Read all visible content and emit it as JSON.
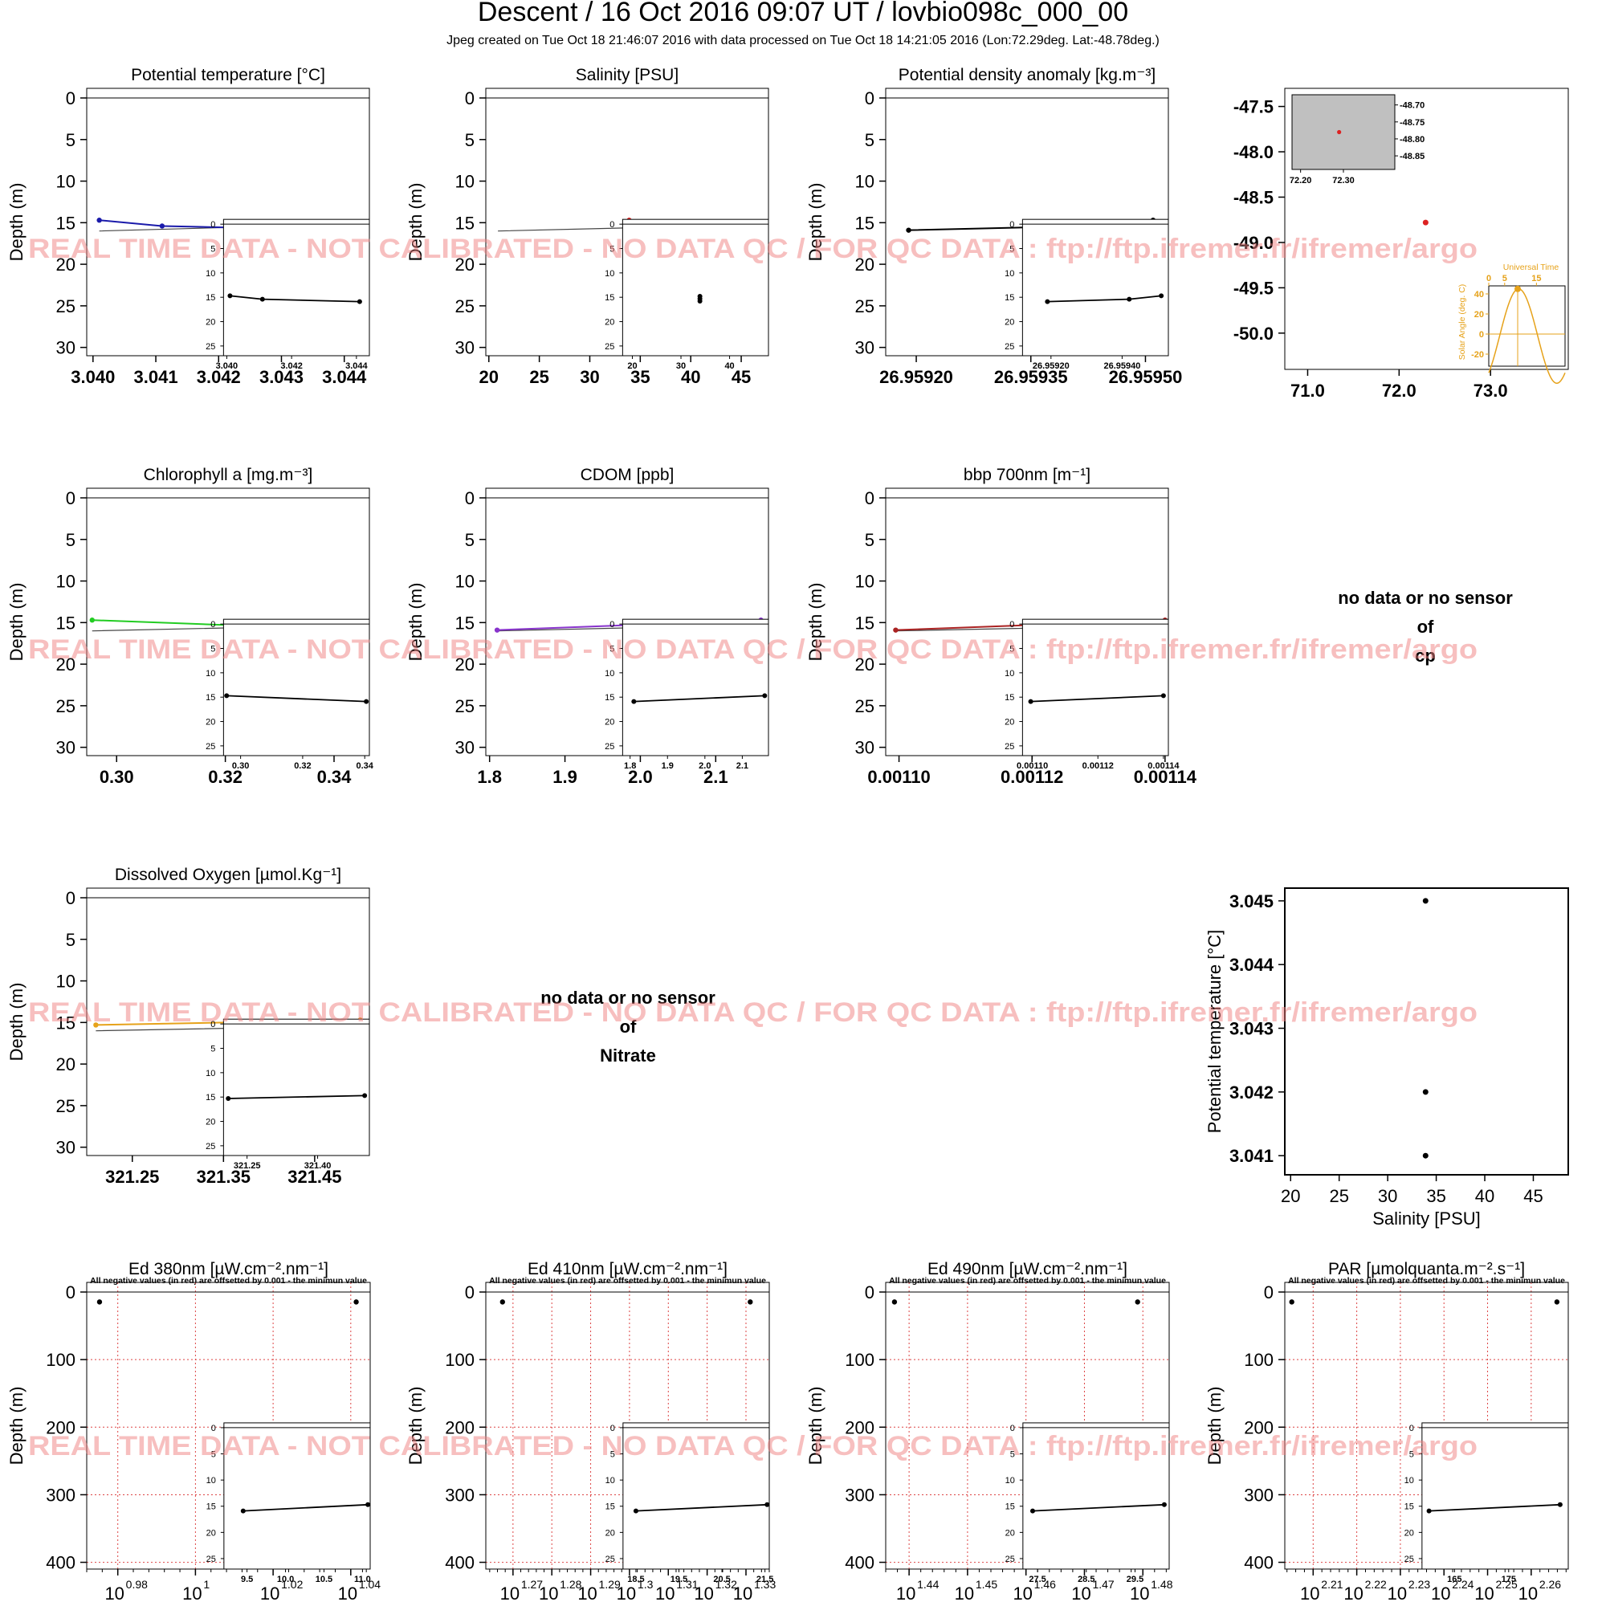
{
  "header": {
    "title": "Descent / 16 Oct 2016 09:07 UT /  lovbio098c_000_00",
    "subtitle": "Jpeg created on Tue Oct 18 21:46:07 2016 with data processed on Tue Oct 18 14:21:05 2016 (Lon:72.29deg. Lat:-48.78deg.)"
  },
  "watermark": "REAL TIME DATA - NOT CALIBRATED - NO DATA QC  /  FOR QC DATA : ftp://ftp.ifremer.fr/ifremer/argo",
  "no_data_messages": {
    "cp": [
      "no data or no sensor",
      "of",
      "cp"
    ],
    "nitrate": [
      "no data or no sensor",
      "of",
      "Nitrate"
    ]
  },
  "chart_data": [
    {
      "id": "temp",
      "type": "line",
      "title": "Potential temperature [°C]",
      "ylabel": "Depth (m)",
      "color": "#1a1aaa",
      "xlim": [
        3.0399,
        3.0444
      ],
      "ylim": [
        0,
        31
      ],
      "y_inverted": true,
      "xticks": [
        3.04,
        3.041,
        3.042,
        3.043,
        3.044
      ],
      "xtick_labels": [
        "3.040",
        "3.041",
        "3.042",
        "3.043",
        "3.044"
      ],
      "yticks": [
        0,
        5,
        10,
        15,
        20,
        25,
        30
      ],
      "points": [
        [
          3.0401,
          14.7
        ],
        [
          3.0411,
          15.4
        ],
        [
          3.0441,
          15.9
        ]
      ],
      "density_profile": [
        [
          3.0401,
          16.0
        ],
        [
          3.0425,
          15.5
        ],
        [
          3.0441,
          14.8
        ]
      ],
      "inset": {
        "xlim": [
          3.0399,
          3.0444
        ],
        "xticks": [
          3.04,
          3.042,
          3.044
        ],
        "xtick_labels": [
          "3.040",
          "3.042",
          "3.044"
        ],
        "yticks": [
          0,
          5,
          10,
          15,
          20,
          25
        ]
      }
    },
    {
      "id": "sal",
      "type": "scatter",
      "title": "Salinity [PSU]",
      "ylabel": "Depth (m)",
      "color": "#dd2222",
      "xlim": [
        19.7,
        47.7
      ],
      "ylim": [
        0,
        31
      ],
      "y_inverted": true,
      "xticks": [
        20,
        25,
        30,
        35,
        40,
        45
      ],
      "xtick_labels": [
        "20",
        "25",
        "30",
        "35",
        "40",
        "45"
      ],
      "yticks": [
        0,
        5,
        10,
        15,
        20,
        25,
        30
      ],
      "points": [
        [
          33.9,
          14.7
        ],
        [
          33.9,
          15.4
        ],
        [
          33.9,
          15.9
        ]
      ],
      "density_profile": [
        [
          20.9,
          16.0
        ],
        [
          38.0,
          15.5
        ],
        [
          46.8,
          14.8
        ]
      ],
      "inset": {
        "xlim": [
          18.0,
          48.0
        ],
        "xticks": [
          20,
          30,
          40
        ],
        "xtick_labels": [
          "20",
          "30",
          "40"
        ],
        "yticks": [
          0,
          5,
          10,
          15,
          20,
          25
        ]
      }
    },
    {
      "id": "dens",
      "type": "line",
      "title": "Potential density anomaly [kg.m⁻³]",
      "ylabel": "Depth (m)",
      "color": "#000000",
      "xlim": [
        26.95916,
        26.95953
      ],
      "ylim": [
        0,
        31
      ],
      "y_inverted": true,
      "xticks": [
        26.9592,
        26.95935,
        26.9595
      ],
      "xtick_labels": [
        "26.95920",
        "26.95935",
        "26.95950"
      ],
      "yticks": [
        0,
        5,
        10,
        15,
        20,
        25,
        30
      ],
      "points": [
        [
          26.95919,
          15.9
        ],
        [
          26.95942,
          15.4
        ],
        [
          26.95951,
          14.7
        ]
      ],
      "inset": {
        "xlim": [
          26.95912,
          26.95953
        ],
        "xticks": [
          26.9592,
          26.9594
        ],
        "xtick_labels": [
          "26.95920",
          "26.95940"
        ],
        "yticks": [
          0,
          5,
          10,
          15,
          20,
          25
        ]
      }
    },
    {
      "id": "chla",
      "type": "line",
      "title": "Chlorophyll a [mg.m⁻³]",
      "ylabel": "Depth (m)",
      "color": "#22cc22",
      "xlim": [
        0.2945,
        0.3465
      ],
      "ylim": [
        0,
        31
      ],
      "y_inverted": true,
      "xticks": [
        0.3,
        0.32,
        0.34
      ],
      "xtick_labels": [
        "0.30",
        "0.32",
        "0.34"
      ],
      "yticks": [
        0,
        5,
        10,
        15,
        20,
        25,
        30
      ],
      "points": [
        [
          0.2955,
          14.7
        ],
        [
          0.3455,
          15.9
        ]
      ],
      "density_profile": [
        [
          0.2955,
          16.0
        ],
        [
          0.33,
          15.5
        ],
        [
          0.3455,
          14.8
        ]
      ],
      "inset": {
        "xlim": [
          0.2945,
          0.3415
        ],
        "xticks": [
          0.3,
          0.32,
          0.34
        ],
        "xtick_labels": [
          "0.30",
          "0.32",
          "0.34"
        ],
        "yticks": [
          0,
          5,
          10,
          15,
          20,
          25
        ]
      }
    },
    {
      "id": "cdom",
      "type": "line",
      "title": "CDOM [ppb]",
      "ylabel": "Depth (m)",
      "color": "#8833cc",
      "xlim": [
        1.795,
        2.17
      ],
      "ylim": [
        0,
        31
      ],
      "y_inverted": true,
      "xticks": [
        1.8,
        1.9,
        2.0,
        2.1
      ],
      "xtick_labels": [
        "1.8",
        "1.9",
        "2.0",
        "2.1"
      ],
      "yticks": [
        0,
        5,
        10,
        15,
        20,
        25,
        30
      ],
      "points": [
        [
          1.81,
          15.9
        ],
        [
          2.16,
          14.7
        ]
      ],
      "density_profile": [
        [
          1.81,
          16.0
        ],
        [
          2.05,
          15.5
        ],
        [
          2.16,
          14.8
        ]
      ],
      "inset": {
        "xlim": [
          1.78,
          2.17
        ],
        "xticks": [
          1.8,
          1.9,
          2.0,
          2.1
        ],
        "xtick_labels": [
          "1.8",
          "1.9",
          "2.0",
          "2.1"
        ],
        "yticks": [
          0,
          5,
          10,
          15,
          20,
          25
        ]
      }
    },
    {
      "id": "bbp",
      "type": "line",
      "title": "bbp 700nm [m⁻¹]",
      "ylabel": "Depth (m)",
      "color": "#aa2222",
      "xlim": [
        0.001098,
        0.0011405
      ],
      "ylim": [
        0,
        31
      ],
      "y_inverted": true,
      "xticks": [
        0.0011,
        0.00112,
        0.00114
      ],
      "xtick_labels": [
        "0.00110",
        "0.00112",
        "0.00114"
      ],
      "yticks": [
        0,
        5,
        10,
        15,
        20,
        25,
        30
      ],
      "points": [
        [
          0.0010995,
          15.9
        ],
        [
          0.00114,
          14.7
        ]
      ],
      "density_profile": [
        [
          0.0010995,
          16.0
        ],
        [
          0.00113,
          15.5
        ],
        [
          0.00114,
          14.8
        ]
      ],
      "inset": {
        "xlim": [
          0.001097,
          0.0011415
        ],
        "xticks": [
          0.0011,
          0.00112,
          0.00114
        ],
        "xtick_labels": [
          "0.00110",
          "0.00112",
          "0.00114"
        ],
        "yticks": [
          0,
          5,
          10,
          15,
          20,
          25
        ]
      }
    },
    {
      "id": "doxy",
      "type": "line",
      "title": "Dissolved Oxygen [µmol.Kg⁻¹]",
      "ylabel": "Depth (m)",
      "color": "#e6a21a",
      "xlim": [
        321.2,
        321.51
      ],
      "ylim": [
        0,
        31
      ],
      "y_inverted": true,
      "xticks": [
        321.25,
        321.35,
        321.45
      ],
      "xtick_labels": [
        "321.25",
        "321.35",
        "321.45"
      ],
      "yticks": [
        0,
        5,
        10,
        15,
        20,
        25,
        30
      ],
      "points": [
        [
          321.21,
          15.3
        ],
        [
          321.5,
          14.7
        ]
      ],
      "density_profile": [
        [
          321.21,
          16.0
        ],
        [
          321.45,
          15.5
        ],
        [
          321.5,
          14.8
        ]
      ],
      "inset": {
        "xlim": [
          321.2,
          321.51
        ],
        "xticks": [
          321.25,
          321.4
        ],
        "xtick_labels": [
          "321.25",
          "321.40"
        ],
        "yticks": [
          0,
          5,
          10,
          15,
          20,
          25
        ]
      }
    },
    {
      "id": "ed380",
      "type": "scatter",
      "title": "Ed 380nm [µW.cm⁻².nm⁻¹]",
      "subtitle": "All negative values (in red) are offsetted by 0.001 - the minimun value",
      "ylabel": "Depth (m)",
      "color": "#000000",
      "x_scale": "log10",
      "xlim": [
        0.972,
        1.045
      ],
      "ylim": [
        0,
        410
      ],
      "y_inverted": true,
      "grid": true,
      "xticks": [
        0.98,
        1.0,
        1.02,
        1.04
      ],
      "xtick_labels": [
        "0.98",
        "1",
        "1.02",
        "1.04"
      ],
      "xtick_base": "10",
      "yticks": [
        0,
        100,
        200,
        300,
        400
      ],
      "points": [
        [
          0.9753,
          14.7
        ],
        [
          1.0414,
          14.7
        ]
      ],
      "inset": {
        "xlim": [
          9.2,
          11.1
        ],
        "xticks": [
          9.5,
          10.0,
          10.5,
          11.0
        ],
        "xtick_labels": [
          "9.5",
          "10.0",
          "10.5",
          "11.0"
        ],
        "yticks": [
          0,
          5,
          10,
          15,
          20,
          25
        ],
        "points": [
          [
            9.45,
            15.9
          ],
          [
            11.07,
            14.7
          ]
        ]
      }
    },
    {
      "id": "ed410",
      "type": "scatter",
      "title": "Ed 410nm [µW.cm⁻².nm⁻¹]",
      "subtitle": "All negative values (in red) are offsetted by 0.001 - the minimun value",
      "ylabel": "Depth (m)",
      "color": "#000000",
      "x_scale": "log10",
      "xlim": [
        1.263,
        1.336
      ],
      "ylim": [
        0,
        410
      ],
      "y_inverted": true,
      "grid": true,
      "xticks": [
        1.27,
        1.28,
        1.29,
        1.3,
        1.31,
        1.32,
        1.33
      ],
      "xtick_labels": [
        "1.27",
        "1.28",
        "1.29",
        "1.3",
        "1.31",
        "1.32",
        "1.33"
      ],
      "xtick_base": "10",
      "yticks": [
        0,
        100,
        200,
        300,
        400
      ],
      "points": [
        [
          1.2673,
          14.7
        ],
        [
          1.3311,
          14.7
        ]
      ],
      "inset": {
        "xlim": [
          18.2,
          21.6
        ],
        "xticks": [
          18.5,
          19.5,
          20.5,
          21.5
        ],
        "xtick_labels": [
          "18.5",
          "19.5",
          "20.5",
          "21.5"
        ],
        "yticks": [
          0,
          5,
          10,
          15,
          20,
          25
        ],
        "points": [
          [
            18.5,
            15.9
          ],
          [
            21.55,
            14.7
          ]
        ]
      }
    },
    {
      "id": "ed490",
      "type": "scatter",
      "title": "Ed 490nm [µW.cm⁻².nm⁻¹]",
      "subtitle": "All negative values (in red) are offsetted by 0.001 - the minimun value",
      "ylabel": "Depth (m)",
      "color": "#000000",
      "x_scale": "log10",
      "xlim": [
        1.436,
        1.4845
      ],
      "ylim": [
        0,
        410
      ],
      "y_inverted": true,
      "grid": true,
      "xticks": [
        1.44,
        1.45,
        1.46,
        1.47,
        1.48
      ],
      "xtick_labels": [
        "1.44",
        "1.45",
        "1.46",
        "1.47",
        "1.48"
      ],
      "xtick_base": "10",
      "yticks": [
        0,
        100,
        200,
        300,
        400
      ],
      "points": [
        [
          1.4375,
          14.7
        ],
        [
          1.4791,
          14.7
        ]
      ],
      "inset": {
        "xlim": [
          27.2,
          30.2
        ],
        "xticks": [
          27.5,
          28.5,
          29.5
        ],
        "xtick_labels": [
          "27.5",
          "28.5",
          "29.5"
        ],
        "yticks": [
          0,
          5,
          10,
          15,
          20,
          25
        ],
        "points": [
          [
            27.4,
            15.9
          ],
          [
            30.1,
            14.7
          ]
        ]
      }
    },
    {
      "id": "par",
      "type": "scatter",
      "title": "PAR [µmolquanta.m⁻².s⁻¹]",
      "subtitle": "All negative values (in red) are offsetted by 0.001 - the minimun value",
      "ylabel": "Depth (m)",
      "color": "#000000",
      "x_scale": "log10",
      "xlim": [
        2.2035,
        2.2685
      ],
      "ylim": [
        0,
        410
      ],
      "y_inverted": true,
      "grid": true,
      "xticks": [
        2.21,
        2.22,
        2.23,
        2.24,
        2.25,
        2.26
      ],
      "xtick_labels": [
        "2.21",
        "2.22",
        "2.23",
        "2.24",
        "2.25",
        "2.26"
      ],
      "xtick_base": "10",
      "yticks": [
        0,
        100,
        200,
        300,
        400
      ],
      "points": [
        [
          2.2051,
          14.7
        ],
        [
          2.2659,
          14.7
        ]
      ],
      "inset": {
        "xlim": [
          159,
          186
        ],
        "xticks": [
          165,
          175
        ],
        "xtick_labels": [
          "165",
          "175"
        ],
        "yticks": [
          0,
          5,
          10,
          15,
          20,
          25
        ],
        "points": [
          [
            160.3,
            15.9
          ],
          [
            184.5,
            14.7
          ]
        ]
      }
    },
    {
      "id": "map",
      "type": "scatter",
      "title": "",
      "xlim": [
        70.75,
        73.85
      ],
      "ylim": [
        -50.4,
        -47.3
      ],
      "y_inverted": true,
      "xticks": [
        71.0,
        72.0,
        73.0
      ],
      "xtick_labels": [
        "71.0",
        "72.0",
        "73.0"
      ],
      "yticks": [
        -47.5,
        -48.0,
        -48.5,
        -49.0,
        -49.5,
        -50.0
      ],
      "ytick_labels": [
        "-47.5",
        "-48.0",
        "-48.5",
        "-49.0",
        "-49.5",
        "-50.0"
      ],
      "points": [
        [
          72.29,
          -48.78
        ]
      ],
      "color": "#dd2222",
      "zoom_inset": {
        "xlim": [
          72.18,
          72.42
        ],
        "ylim": [
          -48.89,
          -48.67
        ],
        "xticks": [
          72.2,
          72.3
        ],
        "xtick_labels": [
          "72.20",
          "72.30"
        ],
        "yticks": [
          -48.7,
          -48.75,
          -48.8,
          -48.85
        ],
        "ytick_labels": [
          "-48.70",
          "-48.75",
          "-48.80",
          "-48.85"
        ],
        "point": [
          72.29,
          -48.78
        ]
      },
      "sun_inset": {
        "title": "Universal Time",
        "ylabel": "Solar Angle (deg. C)",
        "color": "#e6a21a",
        "xlim": [
          0,
          24
        ],
        "ylim": [
          -32,
          48
        ],
        "xticks": [
          0,
          5,
          15
        ],
        "xtick_labels": [
          "0",
          "5",
          "15"
        ],
        "yticks": [
          40,
          20,
          0,
          -20
        ],
        "ytick_labels": [
          "40",
          "20",
          "0",
          "-20"
        ],
        "current": [
          9.1,
          45
        ]
      }
    },
    {
      "id": "ts",
      "type": "scatter",
      "title": "",
      "xlabel": "Salinity [PSU]",
      "ylabel": "Potential temperature [°C]",
      "color": "#000000",
      "xlim": [
        19.4,
        48.6
      ],
      "ylim": [
        3.0407,
        3.0452
      ],
      "xticks": [
        20,
        25,
        30,
        35,
        40,
        45
      ],
      "xtick_labels": [
        "20",
        "25",
        "30",
        "35",
        "40",
        "45"
      ],
      "yticks": [
        3.041,
        3.042,
        3.043,
        3.044,
        3.045
      ],
      "ytick_labels": [
        "3.041",
        "3.042",
        "3.043",
        "3.044",
        "3.045"
      ],
      "points": [
        [
          33.9,
          3.045
        ],
        [
          33.9,
          3.042
        ],
        [
          33.9,
          3.041
        ]
      ]
    }
  ]
}
